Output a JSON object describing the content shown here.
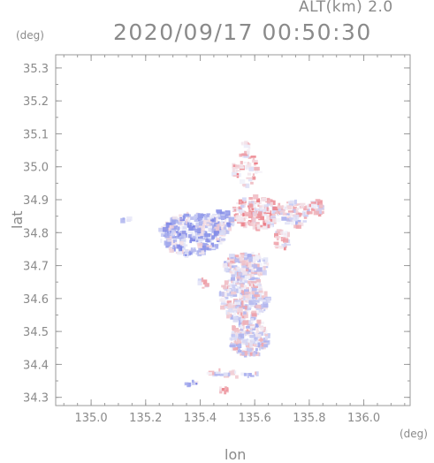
{
  "header": {
    "altitude_label": "ALT(km) 2.0",
    "timestamp": "2020/09/17 00:50:30"
  },
  "chart_data": {
    "type": "heatmap",
    "title": "2020/09/17 00:50:30",
    "subtitle": "ALT(km) 2.0",
    "xlabel": "lon",
    "ylabel": "lat",
    "x_unit": "(deg)",
    "y_unit": "(deg)",
    "xlim": [
      134.87,
      136.17
    ],
    "ylim": [
      34.275,
      35.34
    ],
    "x_ticks": [
      "135.0",
      "135.2",
      "135.4",
      "135.6",
      "135.8",
      "136.0"
    ],
    "y_ticks": [
      "34.3",
      "34.4",
      "34.5",
      "34.6",
      "34.7",
      "34.8",
      "34.9",
      "35.0",
      "35.1",
      "35.2",
      "35.3"
    ],
    "grid": false,
    "colors": {
      "positive": "#e8505a",
      "negative": "#5a66e0",
      "neutral": "#f4f4fa",
      "axis": "#9a9a9a",
      "text": "#8a8a8a"
    },
    "regions": [
      {
        "lon": 135.37,
        "lat": 34.795,
        "rlon": 0.12,
        "rlat": 0.065,
        "value": -0.3,
        "n": 320
      },
      {
        "lon": 135.47,
        "lat": 34.83,
        "rlon": 0.05,
        "rlat": 0.04,
        "value": -0.25,
        "n": 80
      },
      {
        "lon": 135.61,
        "lat": 34.86,
        "rlon": 0.09,
        "rlat": 0.05,
        "value": 0.25,
        "n": 160
      },
      {
        "lon": 135.74,
        "lat": 34.855,
        "rlon": 0.06,
        "rlat": 0.04,
        "value": 0.0,
        "n": 70
      },
      {
        "lon": 135.82,
        "lat": 34.875,
        "rlon": 0.03,
        "rlat": 0.025,
        "value": 0.1,
        "n": 30
      },
      {
        "lon": 135.57,
        "lat": 34.99,
        "rlon": 0.05,
        "rlat": 0.05,
        "value": 0.3,
        "n": 45
      },
      {
        "lon": 135.565,
        "lat": 35.06,
        "rlon": 0.02,
        "rlat": 0.025,
        "value": 0.4,
        "n": 10
      },
      {
        "lon": 135.57,
        "lat": 34.7,
        "rlon": 0.08,
        "rlat": 0.04,
        "value": 0.0,
        "n": 140
      },
      {
        "lon": 135.56,
        "lat": 34.6,
        "rlon": 0.09,
        "rlat": 0.07,
        "value": 0.0,
        "n": 260
      },
      {
        "lon": 135.58,
        "lat": 34.48,
        "rlon": 0.07,
        "rlat": 0.06,
        "value": 0.0,
        "n": 200
      },
      {
        "lon": 135.7,
        "lat": 34.78,
        "rlon": 0.03,
        "rlat": 0.03,
        "value": 0.2,
        "n": 30
      },
      {
        "lon": 135.52,
        "lat": 34.37,
        "rlon": 0.1,
        "rlat": 0.012,
        "value": -0.1,
        "n": 25
      },
      {
        "lon": 135.37,
        "lat": 34.34,
        "rlon": 0.02,
        "rlat": 0.01,
        "value": -0.4,
        "n": 8
      },
      {
        "lon": 135.49,
        "lat": 34.325,
        "rlon": 0.02,
        "rlat": 0.01,
        "value": 0.5,
        "n": 8
      },
      {
        "lon": 135.13,
        "lat": 34.84,
        "rlon": 0.02,
        "rlat": 0.01,
        "value": -0.3,
        "n": 4
      },
      {
        "lon": 135.42,
        "lat": 34.65,
        "rlon": 0.03,
        "rlat": 0.02,
        "value": 0.2,
        "n": 8
      }
    ]
  }
}
